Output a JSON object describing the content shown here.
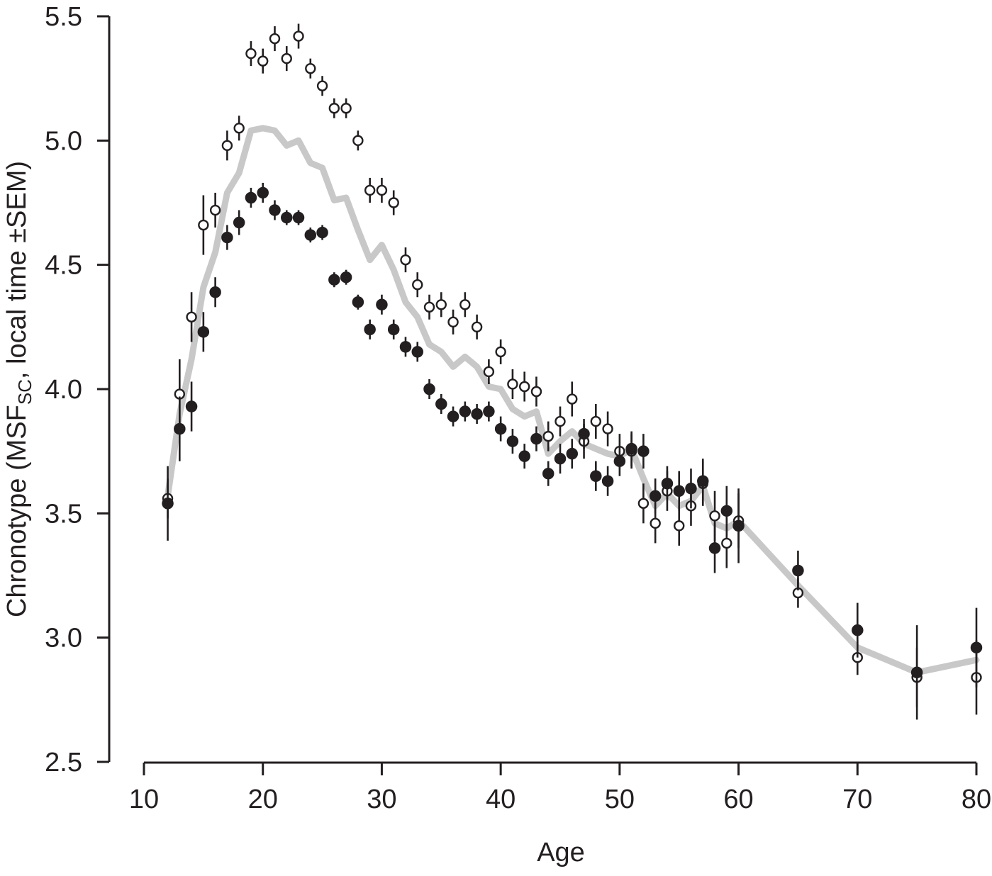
{
  "chart_data": {
    "type": "scatter",
    "xlabel": "Age",
    "ylabel": {
      "prefix": "Chronotype (MSF",
      "subscript": "SC",
      "suffix": ", local time ±SEM)"
    },
    "xlim": [
      10,
      80
    ],
    "ylim": [
      2.5,
      5.5
    ],
    "x_ticks": [
      "10",
      "20",
      "30",
      "40",
      "50",
      "60",
      "70",
      "80"
    ],
    "y_ticks": [
      "2.5",
      "3.0",
      "3.5",
      "4.0",
      "4.5",
      "5.0",
      "5.5"
    ],
    "colors": {
      "filled_series": "#231f20",
      "open_series": "#ffffff",
      "trend_line": "#c8c8c8",
      "axis": "#231f20"
    },
    "series": [
      {
        "marker": "filled-circle",
        "x": [
          12,
          13,
          14,
          15,
          16,
          17,
          18,
          19,
          20,
          21,
          22,
          23,
          24,
          25,
          26,
          27,
          28,
          29,
          30,
          31,
          32,
          33,
          34,
          35,
          36,
          37,
          38,
          39,
          40,
          41,
          42,
          43,
          44,
          45,
          46,
          47,
          48,
          49,
          50,
          51,
          52,
          53,
          54,
          55,
          56,
          57,
          58,
          59,
          60,
          65,
          70,
          75,
          80
        ],
        "y": [
          3.54,
          3.84,
          3.93,
          4.23,
          4.39,
          4.61,
          4.67,
          4.77,
          4.79,
          4.72,
          4.69,
          4.69,
          4.62,
          4.63,
          4.44,
          4.45,
          4.35,
          4.24,
          4.34,
          4.24,
          4.17,
          4.15,
          4.0,
          3.94,
          3.89,
          3.91,
          3.9,
          3.91,
          3.84,
          3.79,
          3.73,
          3.8,
          3.66,
          3.72,
          3.74,
          3.82,
          3.65,
          3.63,
          3.71,
          3.76,
          3.75,
          3.57,
          3.62,
          3.59,
          3.6,
          3.63,
          3.36,
          3.51,
          3.45,
          3.27,
          3.03,
          2.86,
          2.96
        ],
        "sem": [
          0.15,
          0.13,
          0.1,
          0.08,
          0.06,
          0.05,
          0.05,
          0.04,
          0.04,
          0.04,
          0.03,
          0.03,
          0.03,
          0.03,
          0.03,
          0.03,
          0.03,
          0.04,
          0.04,
          0.04,
          0.04,
          0.04,
          0.04,
          0.04,
          0.04,
          0.04,
          0.04,
          0.04,
          0.05,
          0.05,
          0.05,
          0.05,
          0.05,
          0.06,
          0.06,
          0.06,
          0.06,
          0.06,
          0.06,
          0.07,
          0.07,
          0.07,
          0.07,
          0.08,
          0.08,
          0.09,
          0.1,
          0.1,
          0.15,
          0.08,
          0.11,
          0.19,
          0.16
        ]
      },
      {
        "marker": "open-circle",
        "x": [
          12,
          13,
          14,
          15,
          16,
          17,
          18,
          19,
          20,
          21,
          22,
          23,
          24,
          25,
          26,
          27,
          28,
          29,
          30,
          31,
          32,
          33,
          34,
          35,
          36,
          37,
          38,
          39,
          40,
          41,
          42,
          43,
          44,
          45,
          46,
          47,
          48,
          49,
          50,
          51,
          52,
          53,
          54,
          55,
          56,
          57,
          58,
          59,
          60,
          65,
          70,
          75,
          80
        ],
        "y": [
          3.56,
          3.98,
          4.29,
          4.66,
          4.72,
          4.98,
          5.05,
          5.35,
          5.32,
          5.41,
          5.33,
          5.42,
          5.29,
          5.22,
          5.13,
          5.13,
          5.0,
          4.8,
          4.8,
          4.75,
          4.52,
          4.42,
          4.33,
          4.34,
          4.27,
          4.34,
          4.25,
          4.07,
          4.15,
          4.02,
          4.01,
          3.99,
          3.81,
          3.87,
          3.96,
          3.79,
          3.87,
          3.84,
          3.75,
          3.75,
          3.54,
          3.46,
          3.59,
          3.45,
          3.53,
          3.62,
          3.49,
          3.38,
          3.47,
          3.18,
          2.92,
          2.84,
          2.84
        ],
        "sem": [
          0.08,
          0.14,
          0.1,
          0.12,
          0.07,
          0.06,
          0.05,
          0.05,
          0.05,
          0.05,
          0.05,
          0.05,
          0.04,
          0.04,
          0.04,
          0.04,
          0.04,
          0.05,
          0.05,
          0.05,
          0.05,
          0.05,
          0.05,
          0.05,
          0.05,
          0.05,
          0.05,
          0.05,
          0.05,
          0.06,
          0.06,
          0.06,
          0.06,
          0.06,
          0.07,
          0.07,
          0.07,
          0.07,
          0.07,
          0.07,
          0.08,
          0.08,
          0.08,
          0.08,
          0.08,
          0.09,
          0.1,
          0.1,
          0.11,
          0.06,
          0.07,
          0.12,
          0.15
        ]
      }
    ],
    "trend": {
      "x": [
        12,
        13,
        14,
        15,
        16,
        17,
        18,
        19,
        20,
        21,
        22,
        23,
        24,
        25,
        26,
        27,
        28,
        29,
        30,
        31,
        32,
        33,
        34,
        35,
        36,
        37,
        38,
        39,
        40,
        41,
        42,
        43,
        44,
        45,
        46,
        47,
        48,
        49,
        50,
        51,
        52,
        53,
        54,
        55,
        56,
        57,
        58,
        59,
        60,
        65,
        70,
        75,
        80
      ],
      "y": [
        3.57,
        3.9,
        4.12,
        4.41,
        4.55,
        4.79,
        4.87,
        5.04,
        5.05,
        5.04,
        4.98,
        5.0,
        4.91,
        4.89,
        4.76,
        4.77,
        4.64,
        4.52,
        4.58,
        4.48,
        4.35,
        4.29,
        4.18,
        4.15,
        4.09,
        4.13,
        4.09,
        4.01,
        4.0,
        3.92,
        3.89,
        3.91,
        3.74,
        3.79,
        3.83,
        3.78,
        3.76,
        3.74,
        3.73,
        3.76,
        3.64,
        3.53,
        3.58,
        3.53,
        3.55,
        3.61,
        3.46,
        3.44,
        3.47,
        3.21,
        2.96,
        2.86,
        2.91
      ]
    }
  }
}
